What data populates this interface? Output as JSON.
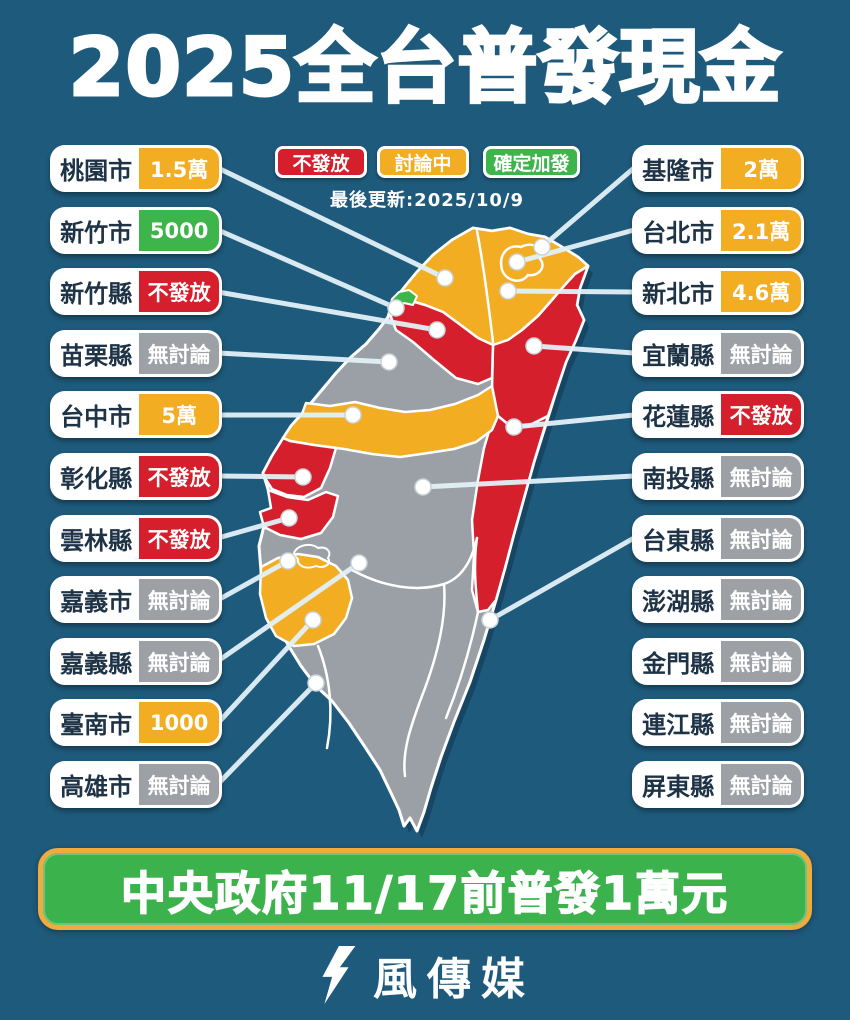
{
  "title": "2025全台普發現金",
  "legend": {
    "items": [
      {
        "label": "不發放",
        "status": "red"
      },
      {
        "label": "討論中",
        "status": "yellow"
      },
      {
        "label": "確定加發",
        "status": "green"
      }
    ],
    "updated": "最後更新:2025/10/9"
  },
  "counties": {
    "left": [
      {
        "name": "桃園市",
        "value": "1.5萬",
        "status": "yellow"
      },
      {
        "name": "新竹市",
        "value": "5000",
        "status": "green"
      },
      {
        "name": "新竹縣",
        "value": "不發放",
        "status": "red"
      },
      {
        "name": "苗栗縣",
        "value": "無討論",
        "status": "gray"
      },
      {
        "name": "台中市",
        "value": "5萬",
        "status": "yellow"
      },
      {
        "name": "彰化縣",
        "value": "不發放",
        "status": "red"
      },
      {
        "name": "雲林縣",
        "value": "不發放",
        "status": "red"
      },
      {
        "name": "嘉義市",
        "value": "無討論",
        "status": "gray"
      },
      {
        "name": "嘉義縣",
        "value": "無討論",
        "status": "gray"
      },
      {
        "name": "臺南市",
        "value": "1000",
        "status": "yellow"
      },
      {
        "name": "高雄市",
        "value": "無討論",
        "status": "gray"
      }
    ],
    "right": [
      {
        "name": "基隆市",
        "value": "2萬",
        "status": "yellow"
      },
      {
        "name": "台北市",
        "value": "2.1萬",
        "status": "yellow"
      },
      {
        "name": "新北市",
        "value": "4.6萬",
        "status": "yellow"
      },
      {
        "name": "宜蘭縣",
        "value": "無討論",
        "status": "gray"
      },
      {
        "name": "花蓮縣",
        "value": "不發放",
        "status": "red"
      },
      {
        "name": "南投縣",
        "value": "無討論",
        "status": "gray"
      },
      {
        "name": "台東縣",
        "value": "無討論",
        "status": "gray"
      },
      {
        "name": "澎湖縣",
        "value": "無討論",
        "status": "gray"
      },
      {
        "name": "金門縣",
        "value": "無討論",
        "status": "gray"
      },
      {
        "name": "連江縣",
        "value": "無討論",
        "status": "gray"
      },
      {
        "name": "屏東縣",
        "value": "無討論",
        "status": "gray"
      }
    ]
  },
  "banner": {
    "text": "中央政府11/17前普發1萬元"
  },
  "footer": {
    "brand": "風傳媒"
  },
  "colors": {
    "background": "#1e5a7b",
    "red": "#d51f2c",
    "yellow": "#f2ad23",
    "green": "#3db54a",
    "gray": "#9da1a6",
    "banner_green": "#3bb24c",
    "banner_border": "#f0ab3e",
    "map_base_gray": "#9aa0a6"
  }
}
